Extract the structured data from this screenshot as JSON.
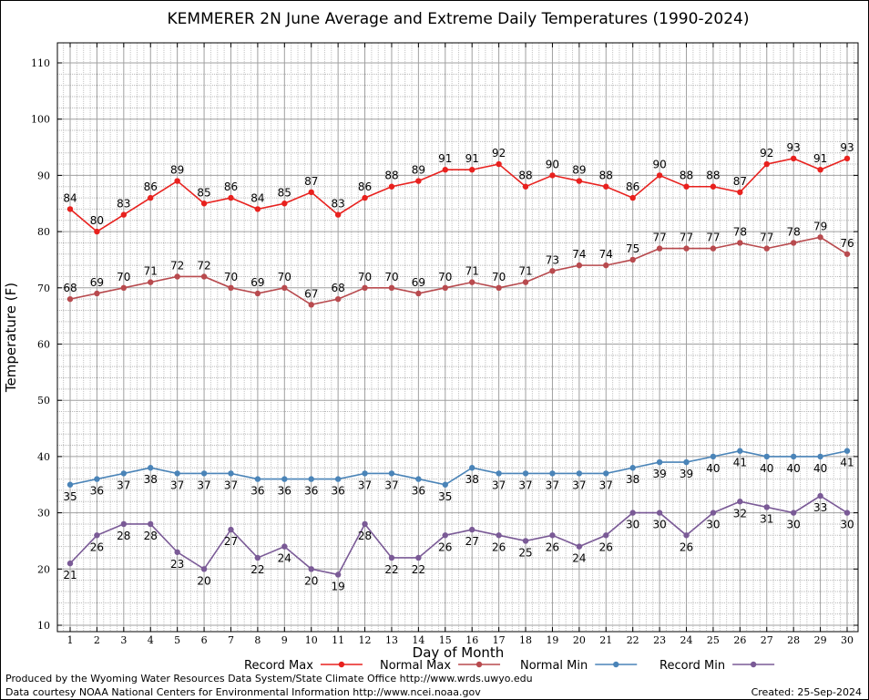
{
  "chart_data": {
    "type": "line",
    "title": "KEMMERER 2N June Average and Extreme Daily Temperatures (1990-2024)",
    "xlabel": "Day of Month",
    "ylabel": "Temperature (F)",
    "xlim": [
      1,
      30
    ],
    "ylim": [
      10,
      110
    ],
    "yticks": [
      10,
      20,
      30,
      40,
      50,
      60,
      70,
      80,
      90,
      100,
      110
    ],
    "x": [
      1,
      2,
      3,
      4,
      5,
      6,
      7,
      8,
      9,
      10,
      11,
      12,
      13,
      14,
      15,
      16,
      17,
      18,
      19,
      20,
      21,
      22,
      23,
      24,
      25,
      26,
      27,
      28,
      29,
      30
    ],
    "grid": true,
    "legend_position": "bottom",
    "series": [
      {
        "name": "Record Max",
        "color": "#e8211e",
        "label_position": "above",
        "values": [
          84,
          80,
          83,
          86,
          89,
          85,
          86,
          84,
          85,
          87,
          83,
          86,
          88,
          89,
          91,
          91,
          92,
          88,
          90,
          89,
          88,
          86,
          90,
          88,
          88,
          87,
          92,
          93,
          91,
          93
        ]
      },
      {
        "name": "Normal Max",
        "color": "#b84a4e",
        "label_position": "above",
        "values": [
          68,
          69,
          70,
          71,
          72,
          72,
          70,
          69,
          70,
          67,
          68,
          70,
          70,
          69,
          70,
          71,
          70,
          71,
          73,
          74,
          74,
          75,
          77,
          77,
          77,
          78,
          77,
          78,
          79,
          76
        ]
      },
      {
        "name": "Normal Min",
        "color": "#4a84b8",
        "label_position": "below",
        "values": [
          35,
          36,
          37,
          38,
          37,
          37,
          37,
          36,
          36,
          36,
          36,
          37,
          37,
          36,
          35,
          38,
          37,
          37,
          37,
          37,
          37,
          38,
          39,
          39,
          40,
          41,
          40,
          40,
          40,
          41
        ]
      },
      {
        "name": "Record Min",
        "color": "#7a5a96",
        "label_position": "below",
        "values": [
          21,
          26,
          28,
          28,
          23,
          20,
          27,
          22,
          24,
          20,
          19,
          28,
          22,
          22,
          26,
          27,
          26,
          25,
          26,
          24,
          26,
          30,
          30,
          26,
          30,
          32,
          31,
          30,
          33,
          30
        ]
      }
    ]
  },
  "footer": {
    "produced_by": "Produced by the Wyoming Water Resources Data System/State Climate Office http://www.wrds.uwyo.edu",
    "courtesy": "Data courtesy NOAA National Centers for Environmental Information http://www.ncei.noaa.gov",
    "created": "Created:  25-Sep-2024"
  }
}
